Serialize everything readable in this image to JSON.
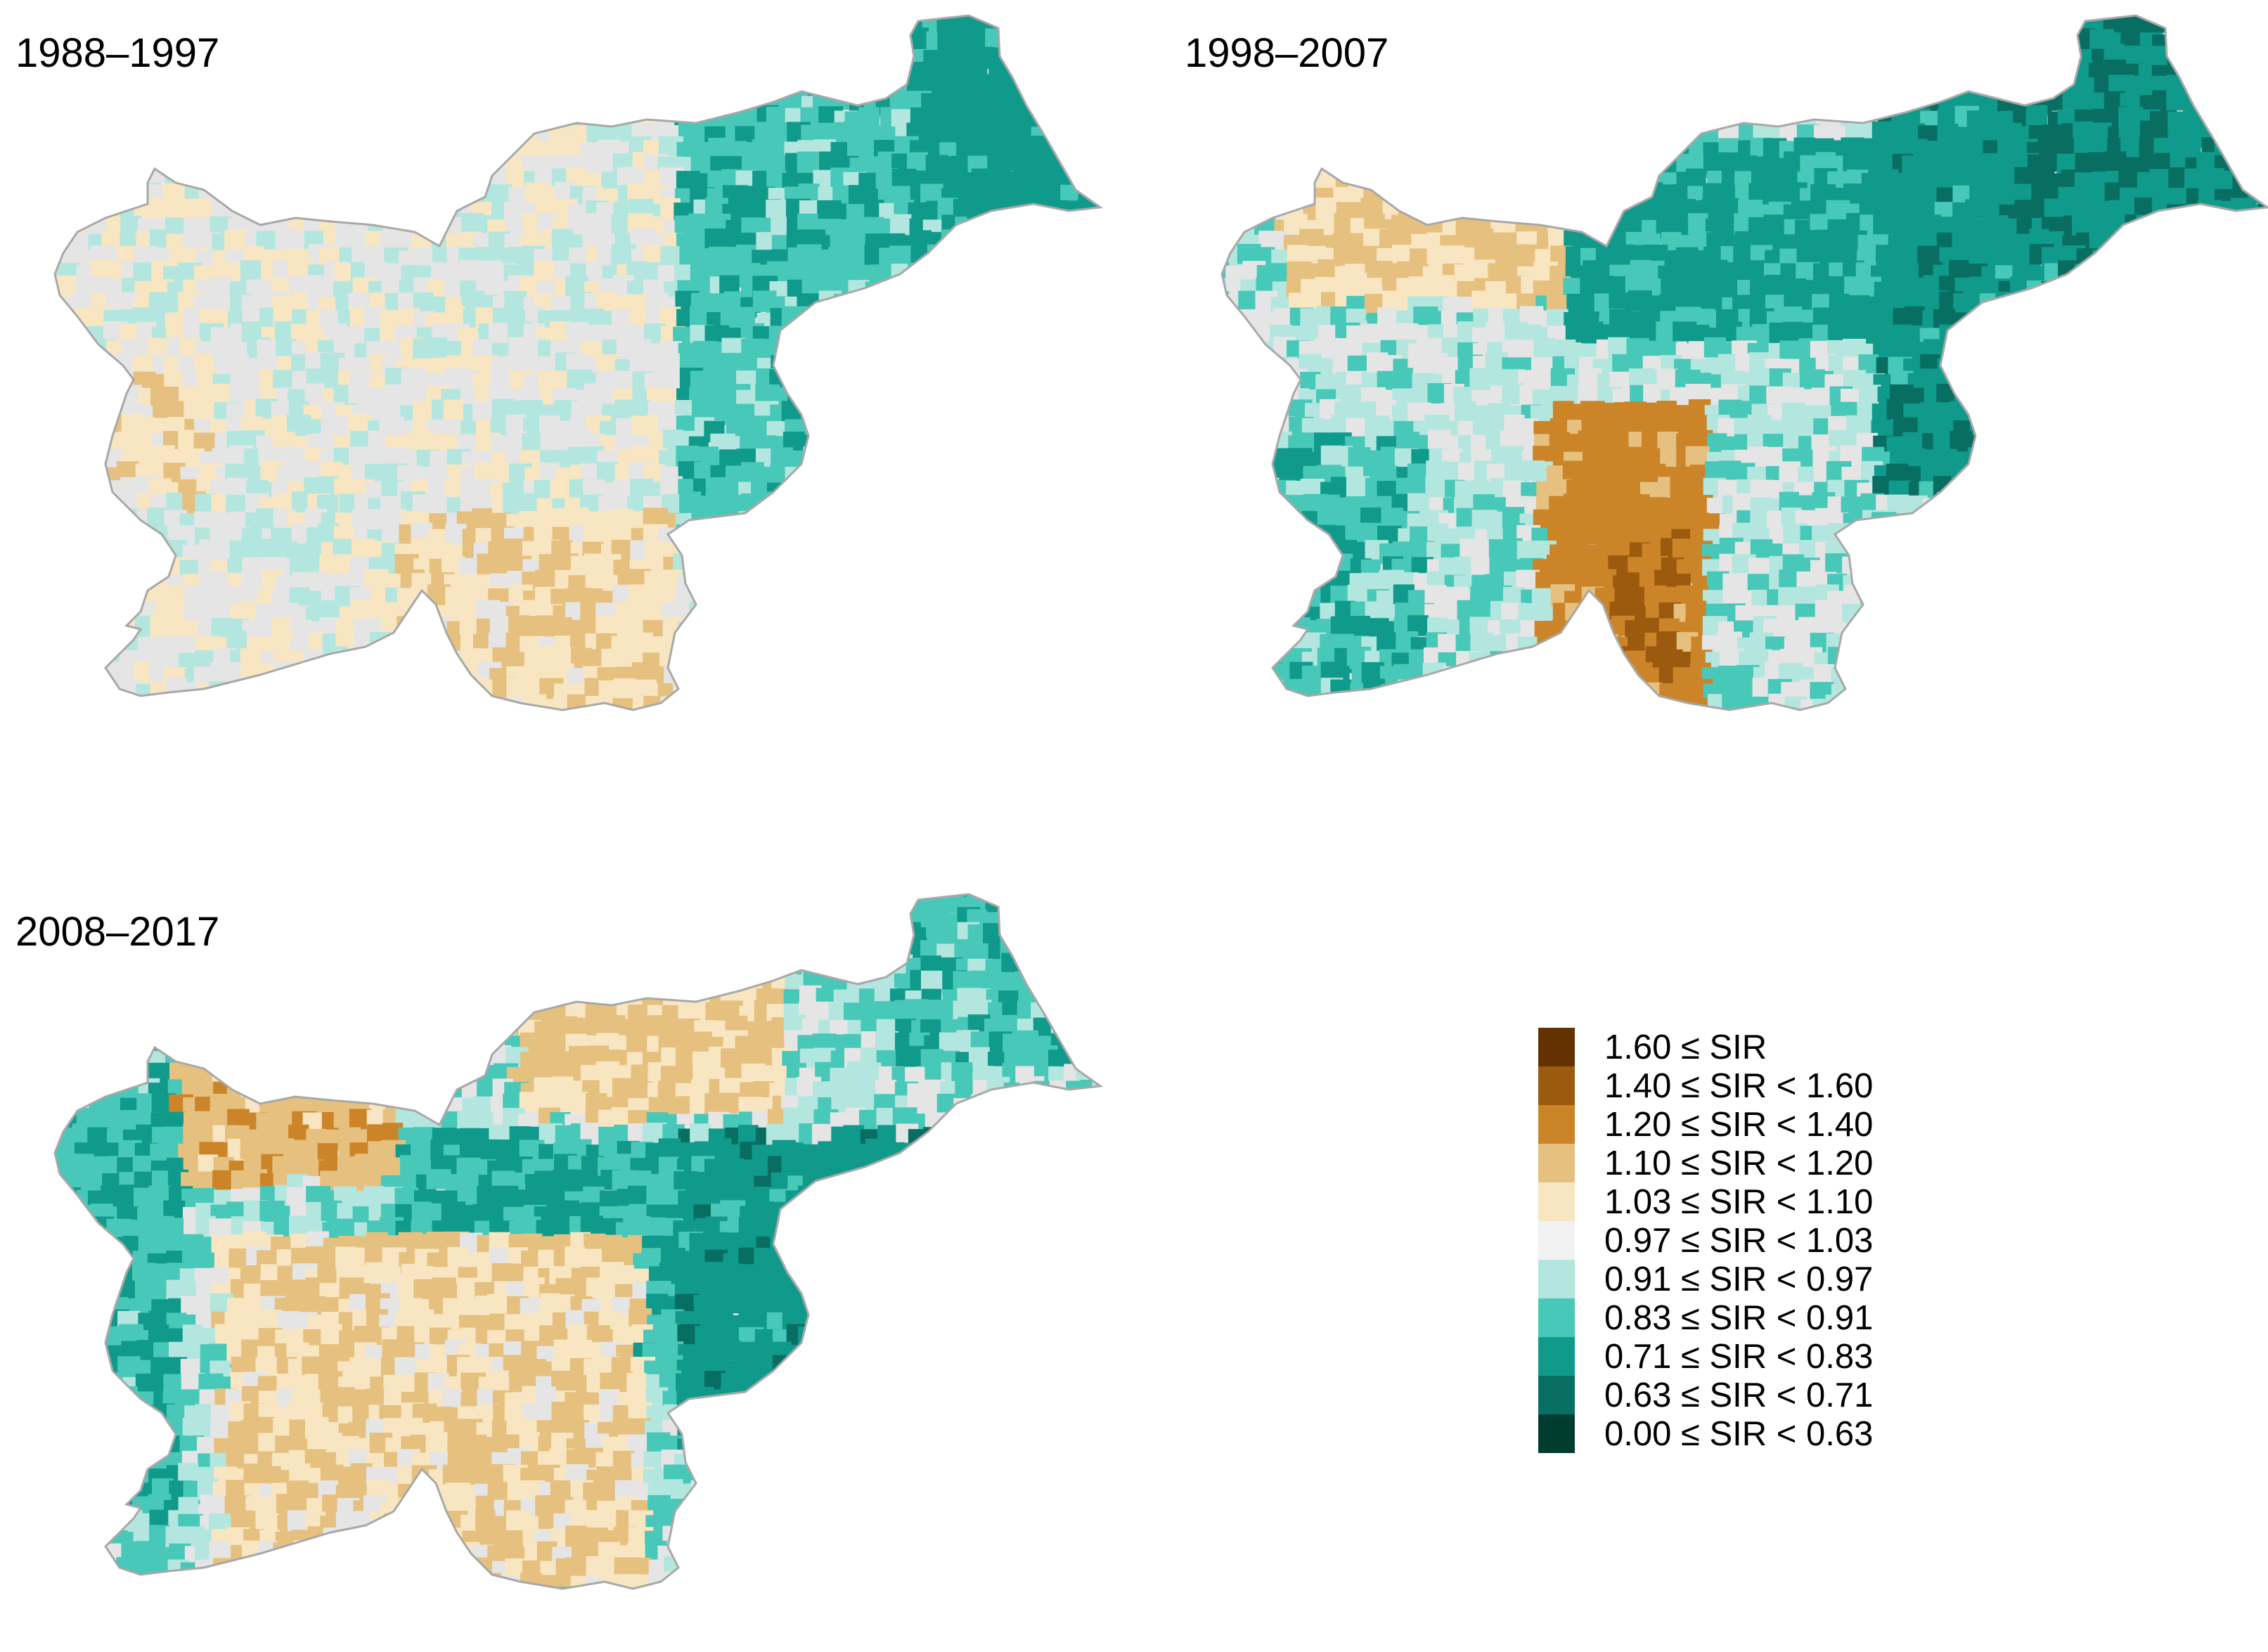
{
  "panels": [
    {
      "id": "p1988",
      "title": "1988–1997",
      "bias": 0.0
    },
    {
      "id": "p1998",
      "title": "1998–2007",
      "bias": 0.0
    },
    {
      "id": "p2008",
      "title": "2008–2017",
      "bias": 0.0
    }
  ],
  "legend": {
    "items": [
      {
        "label": "1.60 ≤ SIR",
        "color": "#643200"
      },
      {
        "label": "1.40 ≤ SIR < 1.60",
        "color": "#9c5a0e"
      },
      {
        "label": "1.20 ≤ SIR < 1.40",
        "color": "#cc8428"
      },
      {
        "label": "1.10 ≤ SIR < 1.20",
        "color": "#e6c07e"
      },
      {
        "label": "1.03 ≤ SIR < 1.10",
        "color": "#f8e6c2"
      },
      {
        "label": "0.97 ≤ SIR < 1.03",
        "color": "#f2f2f2"
      },
      {
        "label": "0.91 ≤ SIR < 0.97",
        "color": "#b3e6de"
      },
      {
        "label": "0.83 ≤ SIR < 0.91",
        "color": "#48c8b8"
      },
      {
        "label": "0.71 ≤ SIR < 0.83",
        "color": "#109a8c"
      },
      {
        "label": "0.63 ≤ SIR < 0.71",
        "color": "#086e62"
      },
      {
        "label": "0.00 ≤ SIR < 0.63",
        "color": "#003c30"
      }
    ]
  },
  "map_colors": {
    "border": "#a8a8a8",
    "neutral_fill": "#e5e5e5"
  }
}
